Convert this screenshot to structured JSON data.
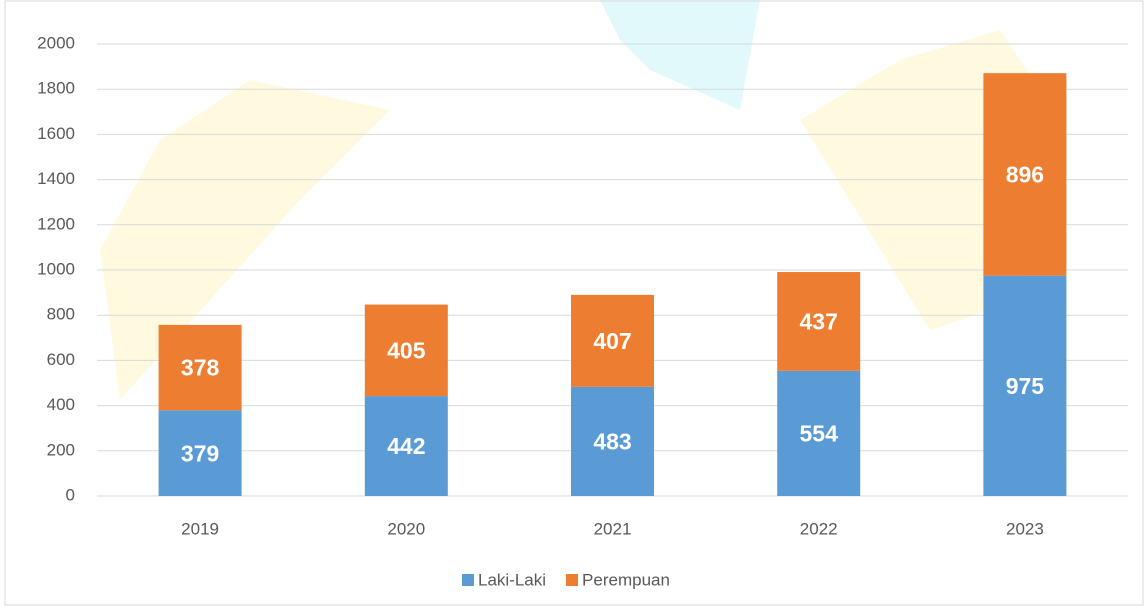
{
  "chart_data": {
    "type": "bar",
    "stacked": true,
    "categories": [
      "2019",
      "2020",
      "2021",
      "2022",
      "2023"
    ],
    "series": [
      {
        "name": "Laki-Laki",
        "color": "#5b9bd5",
        "values": [
          379,
          442,
          483,
          554,
          975
        ]
      },
      {
        "name": "Perempuan",
        "color": "#ed7d31",
        "values": [
          378,
          405,
          407,
          437,
          896
        ]
      }
    ],
    "ylim": [
      0,
      2000
    ],
    "yticks": [
      0,
      200,
      400,
      600,
      800,
      1000,
      1200,
      1400,
      1600,
      1800,
      2000
    ],
    "grid": true,
    "legend": "bottom"
  }
}
